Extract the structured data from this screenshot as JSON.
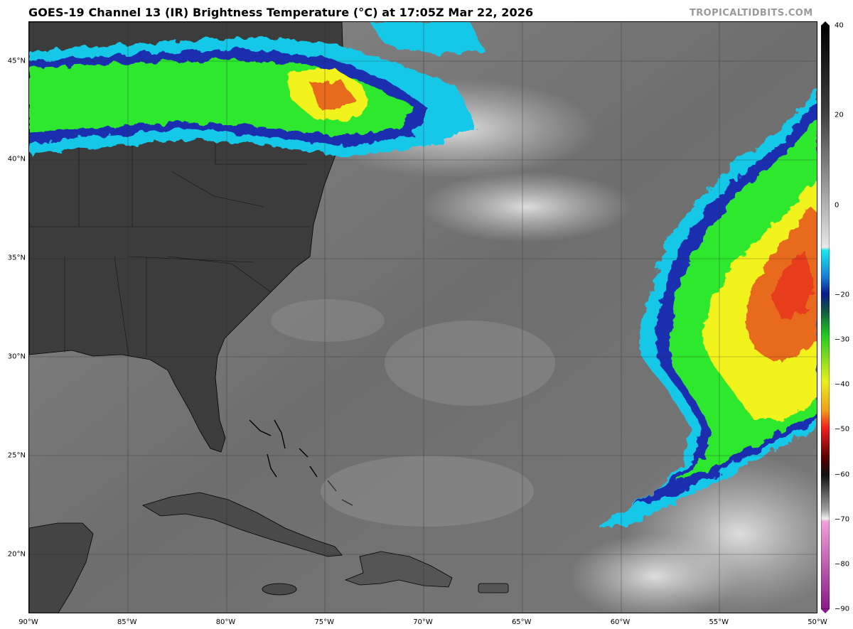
{
  "header": {
    "title": "GOES-19 Channel 13 (IR) Brightness Temperature (°C) at 17:05Z Mar 22, 2026",
    "credit": "TROPICALTIDBITS.COM"
  },
  "map": {
    "lon_range": [
      -90,
      -50
    ],
    "lat_range": [
      17,
      47
    ],
    "lat_ticks": [
      {
        "value": 45,
        "label": "45°N"
      },
      {
        "value": 40,
        "label": "40°N"
      },
      {
        "value": 35,
        "label": "35°N"
      },
      {
        "value": 30,
        "label": "30°N"
      },
      {
        "value": 25,
        "label": "25°N"
      },
      {
        "value": 20,
        "label": "20°N"
      }
    ],
    "lon_ticks": [
      {
        "value": -90,
        "label": "90°W"
      },
      {
        "value": -85,
        "label": "85°W"
      },
      {
        "value": -80,
        "label": "80°W"
      },
      {
        "value": -75,
        "label": "75°W"
      },
      {
        "value": -70,
        "label": "70°W"
      },
      {
        "value": -65,
        "label": "65°W"
      },
      {
        "value": -60,
        "label": "60°W"
      },
      {
        "value": -55,
        "label": "55°W"
      },
      {
        "value": -50,
        "label": "50°W"
      }
    ],
    "colors": {
      "land": "#3a3a3a",
      "ocean": "#6e6e6e",
      "cold_cloud_green": "#2ee82e",
      "core_yellow": "#f2f21e",
      "core_red": "#e83c1e",
      "outline_blue": "#1a2fb0",
      "outline_cyan": "#18c8e8"
    }
  },
  "colorbar": {
    "range": [
      -90,
      40
    ],
    "ticks": [
      {
        "value": 40,
        "label": "40"
      },
      {
        "value": 20,
        "label": "20"
      },
      {
        "value": 0,
        "label": "0"
      },
      {
        "value": -20,
        "label": "−20"
      },
      {
        "value": -30,
        "label": "−30"
      },
      {
        "value": -40,
        "label": "−40"
      },
      {
        "value": -50,
        "label": "−50"
      },
      {
        "value": -60,
        "label": "−60"
      },
      {
        "value": -70,
        "label": "−70"
      },
      {
        "value": -80,
        "label": "−80"
      },
      {
        "value": -90,
        "label": "−90"
      }
    ]
  }
}
